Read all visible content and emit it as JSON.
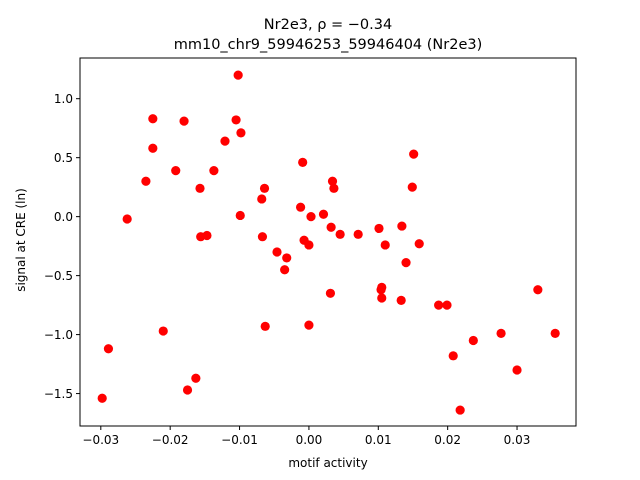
{
  "chart_data": {
    "type": "scatter",
    "title_line1": "Nr2e3, ρ = −0.34",
    "title_line2": "mm10_chr9_59946253_59946404 (Nr2e3)",
    "xlabel": "motif activity",
    "ylabel": "signal at CRE (ln)",
    "xlim": [
      -0.033,
      0.0385
    ],
    "ylim": [
      -1.775,
      1.345
    ],
    "xticks": [
      {
        "value": -0.03,
        "label": "−0.03"
      },
      {
        "value": -0.02,
        "label": "−0.02"
      },
      {
        "value": -0.01,
        "label": "−0.01"
      },
      {
        "value": 0.0,
        "label": "0.00"
      },
      {
        "value": 0.01,
        "label": "0.01"
      },
      {
        "value": 0.02,
        "label": "0.02"
      },
      {
        "value": 0.03,
        "label": "0.03"
      }
    ],
    "yticks": [
      {
        "value": -1.5,
        "label": "−1.5"
      },
      {
        "value": -1.0,
        "label": "−1.0"
      },
      {
        "value": -0.5,
        "label": "−0.5"
      },
      {
        "value": 0.0,
        "label": "0.0"
      },
      {
        "value": 0.5,
        "label": "0.5"
      },
      {
        "value": 1.0,
        "label": "1.0"
      }
    ],
    "marker_color": "#ff0000",
    "grid": false,
    "points": [
      {
        "x": -0.0298,
        "y": -1.54
      },
      {
        "x": -0.0289,
        "y": -1.12
      },
      {
        "x": -0.0262,
        "y": -0.02
      },
      {
        "x": -0.0235,
        "y": 0.3
      },
      {
        "x": -0.0225,
        "y": 0.83
      },
      {
        "x": -0.0225,
        "y": 0.58
      },
      {
        "x": -0.021,
        "y": -0.97
      },
      {
        "x": -0.0192,
        "y": 0.39
      },
      {
        "x": -0.018,
        "y": 0.81
      },
      {
        "x": -0.0175,
        "y": -1.47
      },
      {
        "x": -0.0163,
        "y": -1.37
      },
      {
        "x": -0.0157,
        "y": 0.24
      },
      {
        "x": -0.0156,
        "y": -0.17
      },
      {
        "x": -0.0147,
        "y": -0.16
      },
      {
        "x": -0.0137,
        "y": 0.39
      },
      {
        "x": -0.0121,
        "y": 0.64
      },
      {
        "x": -0.0105,
        "y": 0.82
      },
      {
        "x": -0.0102,
        "y": 1.2
      },
      {
        "x": -0.0099,
        "y": 0.01
      },
      {
        "x": -0.0098,
        "y": 0.71
      },
      {
        "x": -0.0068,
        "y": 0.15
      },
      {
        "x": -0.0067,
        "y": -0.17
      },
      {
        "x": -0.0064,
        "y": 0.24
      },
      {
        "x": -0.0063,
        "y": -0.93
      },
      {
        "x": -0.0046,
        "y": -0.3
      },
      {
        "x": -0.0035,
        "y": -0.45
      },
      {
        "x": -0.0032,
        "y": -0.35
      },
      {
        "x": -0.0012,
        "y": 0.08
      },
      {
        "x": -0.0009,
        "y": 0.46
      },
      {
        "x": -0.0007,
        "y": -0.2
      },
      {
        "x": 0.0,
        "y": -0.24
      },
      {
        "x": 0.0,
        "y": -0.92
      },
      {
        "x": 0.0003,
        "y": 0.0
      },
      {
        "x": 0.0021,
        "y": 0.02
      },
      {
        "x": 0.0031,
        "y": -0.65
      },
      {
        "x": 0.0032,
        "y": -0.09
      },
      {
        "x": 0.0034,
        "y": 0.3
      },
      {
        "x": 0.0036,
        "y": 0.24
      },
      {
        "x": 0.0045,
        "y": -0.15
      },
      {
        "x": 0.0071,
        "y": -0.15
      },
      {
        "x": 0.0101,
        "y": -0.1
      },
      {
        "x": 0.0104,
        "y": -0.62
      },
      {
        "x": 0.0105,
        "y": -0.69
      },
      {
        "x": 0.0105,
        "y": -0.6
      },
      {
        "x": 0.011,
        "y": -0.24
      },
      {
        "x": 0.0133,
        "y": -0.71
      },
      {
        "x": 0.0134,
        "y": -0.08
      },
      {
        "x": 0.014,
        "y": -0.39
      },
      {
        "x": 0.0149,
        "y": 0.25
      },
      {
        "x": 0.0151,
        "y": 0.53
      },
      {
        "x": 0.0159,
        "y": -0.23
      },
      {
        "x": 0.0187,
        "y": -0.75
      },
      {
        "x": 0.0199,
        "y": -0.75
      },
      {
        "x": 0.0208,
        "y": -1.18
      },
      {
        "x": 0.0218,
        "y": -1.64
      },
      {
        "x": 0.0237,
        "y": -1.05
      },
      {
        "x": 0.0277,
        "y": -0.99
      },
      {
        "x": 0.03,
        "y": -1.3
      },
      {
        "x": 0.033,
        "y": -0.62
      },
      {
        "x": 0.0355,
        "y": -0.99
      }
    ]
  }
}
